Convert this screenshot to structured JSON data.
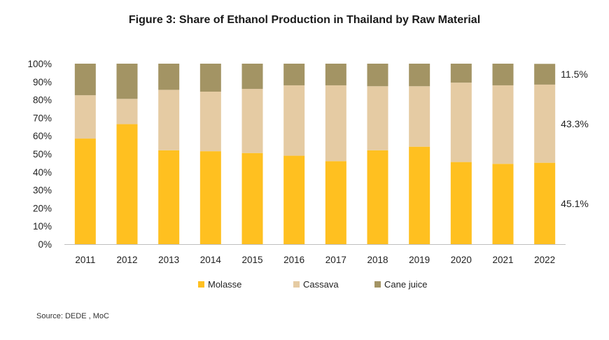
{
  "chart_data": {
    "type": "bar",
    "stacked": true,
    "title": "Figure 3: Share of Ethanol Production in Thailand by Raw Material",
    "xlabel": "",
    "ylabel": "",
    "ylim": [
      0,
      100
    ],
    "yticks": [
      "0%",
      "10%",
      "20%",
      "30%",
      "40%",
      "50%",
      "60%",
      "70%",
      "80%",
      "90%",
      "100%"
    ],
    "categories": [
      "2011",
      "2012",
      "2013",
      "2014",
      "2015",
      "2016",
      "2017",
      "2018",
      "2019",
      "2020",
      "2021",
      "2022"
    ],
    "series": [
      {
        "name": "Molasse",
        "color": "#FFC020",
        "values": [
          58.5,
          66.5,
          52,
          51.5,
          50.5,
          49,
          46,
          52,
          54,
          45.5,
          44.5,
          45.1
        ]
      },
      {
        "name": "Cassava",
        "color": "#E5CBA3",
        "values": [
          24,
          14,
          33.5,
          33,
          35.5,
          39,
          42,
          35.5,
          33.5,
          44,
          43.5,
          43.3
        ]
      },
      {
        "name": "Cane juice",
        "color": "#A39464",
        "values": [
          17.5,
          19.5,
          14.5,
          15.5,
          14,
          12,
          12,
          12.5,
          12.5,
          10.5,
          12,
          11.5
        ]
      }
    ],
    "data_labels": [
      {
        "series": "Cane juice",
        "category": "2022",
        "text": "11.5%"
      },
      {
        "series": "Cassava",
        "category": "2022",
        "text": "43.3%"
      },
      {
        "series": "Molasse",
        "category": "2022",
        "text": "45.1%"
      }
    ],
    "legend_position": "bottom",
    "grid": false
  },
  "source": "Source: DEDE , MoC"
}
